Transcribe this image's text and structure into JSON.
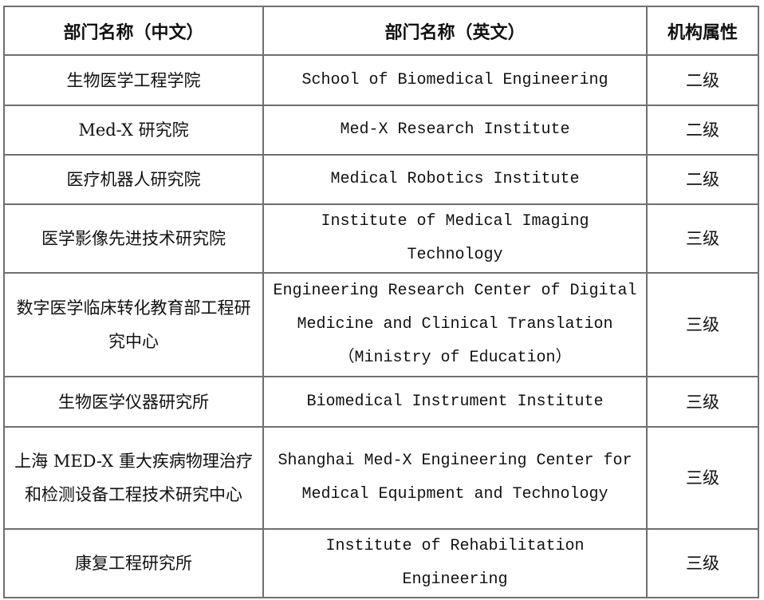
{
  "table": {
    "headers": [
      "部门名称（中文）",
      "部门名称（英文）",
      "机构属性"
    ],
    "rows": [
      {
        "zh": "生物医学工程学院",
        "en": "School of Biomedical Engineering",
        "level": "二级"
      },
      {
        "zh": "Med-X 研究院",
        "en": "Med-X Research Institute",
        "level": "二级"
      },
      {
        "zh": "医疗机器人研究院",
        "en": "Medical Robotics Institute",
        "level": "二级"
      },
      {
        "zh": "医学影像先进技术研究院",
        "en": "Institute of Medical Imaging Technology",
        "level": "三级"
      },
      {
        "zh": "数字医学临床转化教育部工程研究中心",
        "en": "Engineering Research Center of Digital Medicine and Clinical Translation（Ministry of Education）",
        "level": "三级"
      },
      {
        "zh": "生物医学仪器研究所",
        "en": "Biomedical Instrument Institute",
        "level": "三级"
      },
      {
        "zh": "上海 MED-X 重大疾病物理治疗和检测设备工程技术研究中心",
        "en": "Shanghai Med-X Engineering Center for Medical Equipment and Technology",
        "level": "三级"
      },
      {
        "zh": "康复工程研究所",
        "en": "Institute of Rehabilitation Engineering",
        "level": "三级"
      }
    ]
  }
}
